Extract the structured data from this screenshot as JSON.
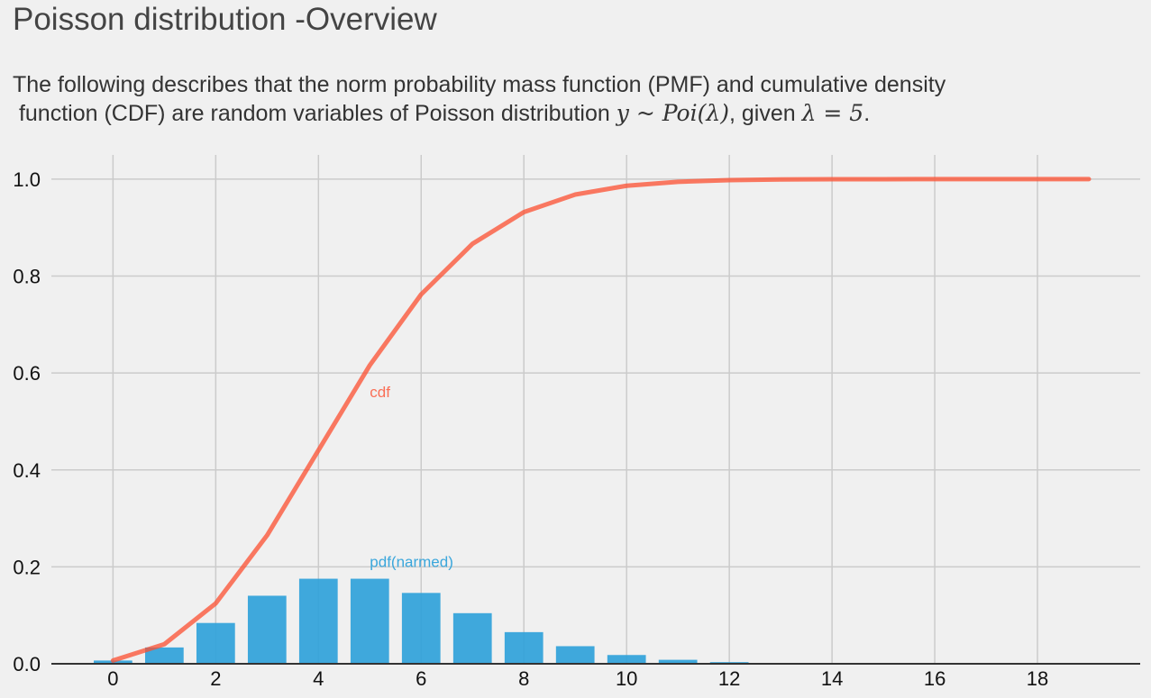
{
  "title": "Poisson distribution -Overview",
  "subtitle": {
    "line1": "The following describes that the norm probability mass function (PMF) and cumulative density",
    "line2_prefix": " function (CDF) are random variables of Poisson distribution ",
    "math_y": "y",
    "math_sim": " ~ ",
    "math_poi": "Poi",
    "math_open": "(",
    "math_lambda1": "λ",
    "math_close": ")",
    "line2_mid": ", given ",
    "math_lambda2": "λ",
    "math_eq": " = 5",
    "line2_end": "."
  },
  "colors": {
    "background": "#f0f0f0",
    "grid": "#cbcbcb",
    "pmf": "#30a2da",
    "cdf": "#fc4f30"
  },
  "chart_data": {
    "type": "bar",
    "x": [
      0,
      1,
      2,
      3,
      4,
      5,
      6,
      7,
      8,
      9,
      10,
      11,
      12,
      13,
      14,
      15,
      16,
      17,
      18,
      19
    ],
    "series": [
      {
        "name": "pdf(narmed)",
        "type": "bar",
        "values": [
          0.0067,
          0.0337,
          0.0842,
          0.1404,
          0.1755,
          0.1755,
          0.1462,
          0.1044,
          0.0653,
          0.0363,
          0.0181,
          0.0082,
          0.0034,
          0.0013,
          0.0005,
          0.0002,
          5e-05,
          1e-05,
          0.0,
          0.0
        ]
      },
      {
        "name": "cdf",
        "type": "line",
        "values": [
          0.0067,
          0.0404,
          0.1247,
          0.265,
          0.4405,
          0.616,
          0.7622,
          0.8666,
          0.9319,
          0.9682,
          0.9863,
          0.9945,
          0.998,
          0.9993,
          0.9998,
          0.9999,
          1.0,
          1.0,
          1.0,
          1.0
        ]
      }
    ],
    "annotations": [
      {
        "text": "cdf",
        "x": 5,
        "y": 0.55
      },
      {
        "text": "pdf(narmed)",
        "x": 5,
        "y": 0.2
      }
    ],
    "xticks": [
      0,
      2,
      4,
      6,
      8,
      10,
      12,
      14,
      16,
      18
    ],
    "yticks": [
      "0.0",
      "0.2",
      "0.4",
      "0.6",
      "0.8",
      "1.0"
    ],
    "xlim": [
      -1.2,
      20.0
    ],
    "ylim": [
      0.0,
      1.05
    ],
    "grid": true
  }
}
